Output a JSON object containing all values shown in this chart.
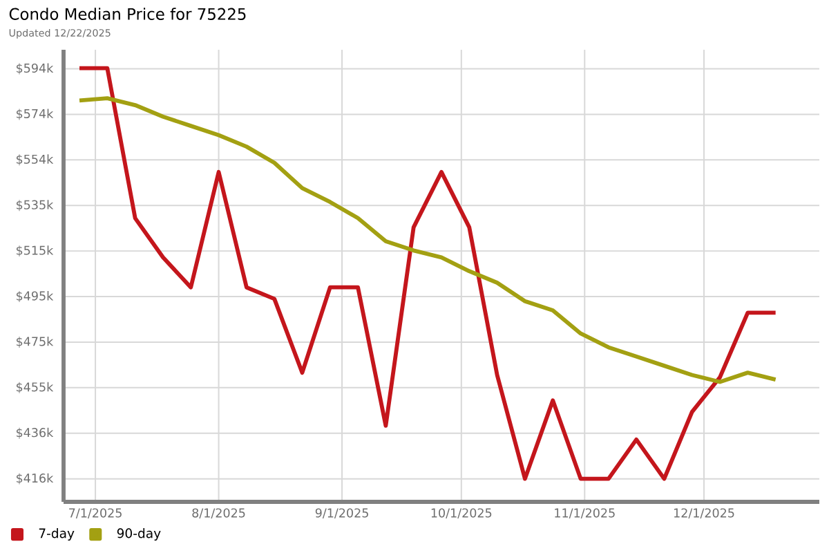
{
  "chart_data": {
    "type": "line",
    "title": "Condo Median Price for 75225",
    "subtitle": "Updated 12/22/2025",
    "x": [
      "2025-06-27",
      "2025-07-04",
      "2025-07-11",
      "2025-07-18",
      "2025-07-25",
      "2025-08-01",
      "2025-08-08",
      "2025-08-15",
      "2025-08-22",
      "2025-08-29",
      "2025-09-05",
      "2025-09-12",
      "2025-09-19",
      "2025-09-26",
      "2025-10-03",
      "2025-10-10",
      "2025-10-17",
      "2025-10-24",
      "2025-10-31",
      "2025-11-07",
      "2025-11-14",
      "2025-11-21",
      "2025-11-28",
      "2025-12-05",
      "2025-12-12",
      "2025-12-19"
    ],
    "series": [
      {
        "name": "7-day",
        "color": "#c4161c",
        "values": [
          594,
          594,
          529,
          512,
          499,
          549,
          499,
          494,
          462,
          499,
          499,
          439,
          525,
          549,
          525,
          461,
          416,
          450,
          416,
          416,
          433,
          416,
          445,
          460,
          488,
          488
        ]
      },
      {
        "name": "90-day",
        "color": "#a3a012",
        "values": [
          580,
          581,
          578,
          573,
          569,
          565,
          560,
          553,
          542,
          536,
          529,
          519,
          515,
          512,
          506,
          501,
          493,
          489,
          479,
          473,
          469,
          465,
          461,
          458,
          462,
          459
        ]
      }
    ],
    "xlim": [
      "2025-06-23",
      "2025-12-30"
    ],
    "xticks": [
      {
        "value": "2025-07-01",
        "label": "7/1/2025"
      },
      {
        "value": "2025-08-01",
        "label": "8/1/2025"
      },
      {
        "value": "2025-09-01",
        "label": "9/1/2025"
      },
      {
        "value": "2025-10-01",
        "label": "10/1/2025"
      },
      {
        "value": "2025-11-01",
        "label": "11/1/2025"
      },
      {
        "value": "2025-12-01",
        "label": "12/1/2025"
      }
    ],
    "ylim": [
      406,
      602
    ],
    "yticks": [
      {
        "value": 416,
        "label": "$416k"
      },
      {
        "value": 435.75,
        "label": "$436k"
      },
      {
        "value": 455.5,
        "label": "$455k"
      },
      {
        "value": 475.25,
        "label": "$475k"
      },
      {
        "value": 495,
        "label": "$495k"
      },
      {
        "value": 514.75,
        "label": "$515k"
      },
      {
        "value": 534.5,
        "label": "$535k"
      },
      {
        "value": 554.25,
        "label": "$554k"
      },
      {
        "value": 574,
        "label": "$574k"
      },
      {
        "value": 593.75,
        "label": "$594k"
      }
    ],
    "grid": true,
    "legend": "bottom left",
    "marker": "none",
    "line_style": "solid"
  }
}
